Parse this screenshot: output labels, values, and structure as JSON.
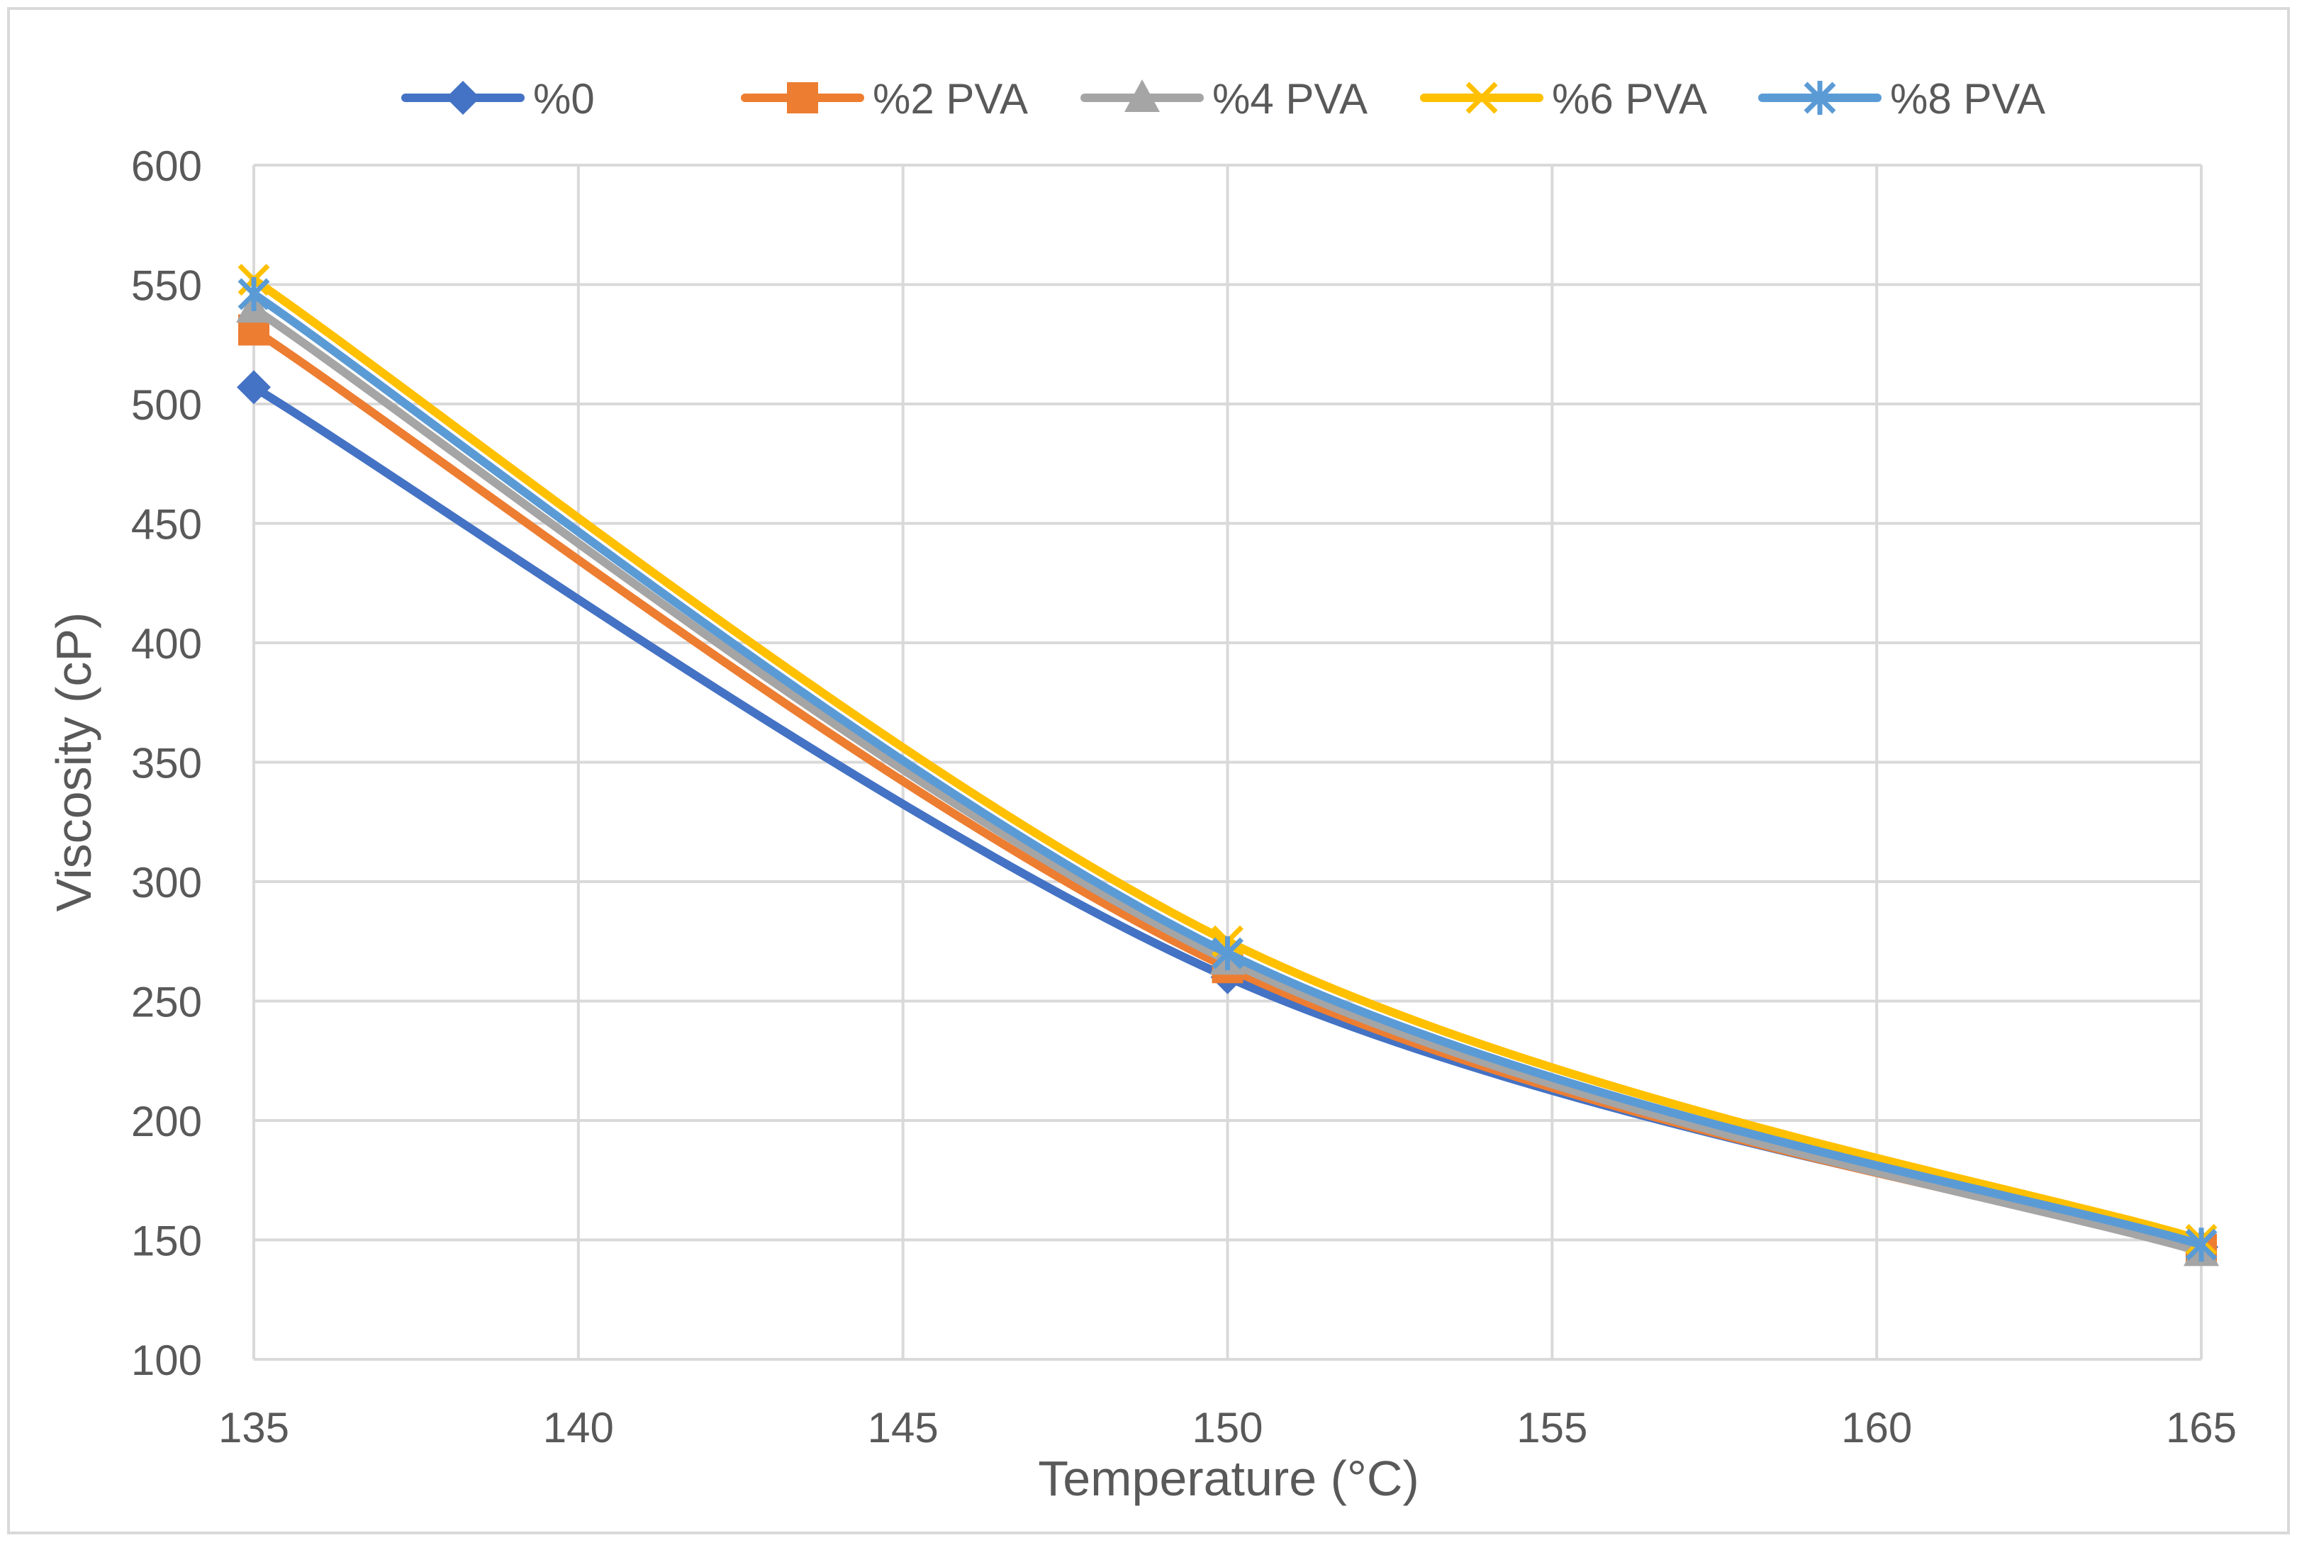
{
  "chart_data": {
    "type": "line",
    "title": "",
    "xlabel": "Temperature (°C)",
    "ylabel": "Viscosity (cP)",
    "xlim": [
      135,
      165
    ],
    "ylim": [
      100,
      600
    ],
    "x_ticks": [
      135,
      140,
      145,
      150,
      155,
      160,
      165
    ],
    "y_ticks": [
      100,
      150,
      200,
      250,
      300,
      350,
      400,
      450,
      500,
      550,
      600
    ],
    "x_tick_labels": [
      "135",
      "140",
      "145",
      "150",
      "155",
      "160",
      "165"
    ],
    "y_tick_labels": [
      "100",
      "150",
      "200",
      "250",
      "300",
      "350",
      "400",
      "450",
      "500",
      "550",
      "600"
    ],
    "grid": true,
    "legend_position": "top",
    "x": [
      135,
      150,
      165
    ],
    "series": [
      {
        "name": "%0",
        "values": [
          507,
          260,
          147
        ],
        "color": "#4472C4",
        "marker": "diamond"
      },
      {
        "name": "%2 PVA",
        "values": [
          531,
          264,
          146
        ],
        "color": "#ED7D31",
        "marker": "square"
      },
      {
        "name": "%4 PVA",
        "values": [
          540,
          267,
          145
        ],
        "color": "#A5A5A5",
        "marker": "triangle"
      },
      {
        "name": "%6 PVA",
        "values": [
          552,
          275,
          150
        ],
        "color": "#FFC000",
        "marker": "x"
      },
      {
        "name": "%8 PVA",
        "values": [
          546,
          270,
          148
        ],
        "color": "#5B9BD5",
        "marker": "star"
      }
    ]
  }
}
